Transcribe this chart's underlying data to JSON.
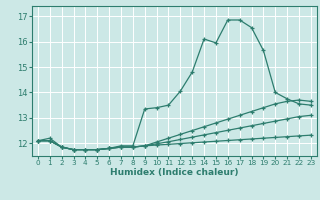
{
  "xlabel": "Humidex (Indice chaleur)",
  "bg_color": "#cce8e6",
  "grid_color": "#ffffff",
  "line_color": "#2d7d6e",
  "xlim": [
    -0.5,
    23.5
  ],
  "ylim": [
    11.5,
    17.4
  ],
  "xticks": [
    0,
    1,
    2,
    3,
    4,
    5,
    6,
    7,
    8,
    9,
    10,
    11,
    12,
    13,
    14,
    15,
    16,
    17,
    18,
    19,
    20,
    21,
    22,
    23
  ],
  "yticks": [
    12,
    13,
    14,
    15,
    16,
    17
  ],
  "series": [
    {
      "x": [
        0,
        1,
        2,
        3,
        4,
        5,
        6,
        7,
        8,
        9,
        10,
        11,
        12,
        13,
        14,
        15,
        16,
        17,
        18,
        19,
        20,
        21,
        22,
        23
      ],
      "y": [
        12.1,
        12.2,
        11.85,
        11.75,
        11.75,
        11.75,
        11.8,
        11.9,
        11.9,
        13.35,
        13.4,
        13.5,
        14.05,
        14.8,
        16.1,
        15.95,
        16.85,
        16.85,
        16.55,
        15.65,
        14.0,
        13.75,
        13.55,
        13.5
      ]
    },
    {
      "x": [
        0,
        1,
        2,
        3,
        4,
        5,
        6,
        7,
        8,
        9,
        10,
        11,
        12,
        13,
        14,
        15,
        16,
        17,
        18,
        19,
        20,
        21,
        22,
        23
      ],
      "y": [
        12.1,
        12.1,
        11.85,
        11.75,
        11.75,
        11.75,
        11.8,
        11.85,
        11.85,
        11.9,
        12.05,
        12.2,
        12.35,
        12.5,
        12.65,
        12.8,
        12.95,
        13.1,
        13.25,
        13.4,
        13.55,
        13.65,
        13.7,
        13.65
      ]
    },
    {
      "x": [
        0,
        1,
        2,
        3,
        4,
        5,
        6,
        7,
        8,
        9,
        10,
        11,
        12,
        13,
        14,
        15,
        16,
        17,
        18,
        19,
        20,
        21,
        22,
        23
      ],
      "y": [
        12.1,
        12.1,
        11.85,
        11.75,
        11.75,
        11.75,
        11.8,
        11.85,
        11.85,
        11.9,
        11.98,
        12.06,
        12.15,
        12.24,
        12.33,
        12.42,
        12.51,
        12.6,
        12.69,
        12.78,
        12.87,
        12.96,
        13.05,
        13.1
      ]
    },
    {
      "x": [
        0,
        1,
        2,
        3,
        4,
        5,
        6,
        7,
        8,
        9,
        10,
        11,
        12,
        13,
        14,
        15,
        16,
        17,
        18,
        19,
        20,
        21,
        22,
        23
      ],
      "y": [
        12.1,
        12.1,
        11.85,
        11.75,
        11.75,
        11.75,
        11.8,
        11.85,
        11.85,
        11.9,
        11.93,
        11.96,
        11.99,
        12.02,
        12.05,
        12.08,
        12.11,
        12.14,
        12.17,
        12.2,
        12.23,
        12.26,
        12.29,
        12.32
      ]
    }
  ]
}
